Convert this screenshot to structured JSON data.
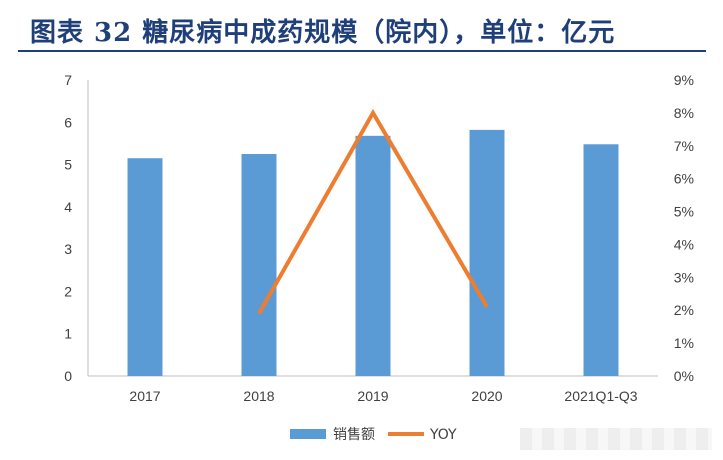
{
  "title": "图表 32   糖尿病中成药规模（院内），单位：亿元",
  "chart_data": {
    "type": "bar",
    "categories": [
      "2017",
      "2018",
      "2019",
      "2020",
      "2021Q1-Q3"
    ],
    "series": [
      {
        "name": "销售额",
        "type": "bar",
        "axis": "left",
        "color": "#5b9bd5",
        "values": [
          5.15,
          5.25,
          5.68,
          5.82,
          5.48
        ]
      },
      {
        "name": "YOY",
        "type": "line",
        "axis": "right",
        "color": "#ed7d31",
        "values": [
          null,
          0.019,
          0.08,
          0.021,
          null
        ]
      }
    ],
    "y_left": {
      "min": 0,
      "max": 7,
      "ticks": [
        "0",
        "1",
        "2",
        "3",
        "4",
        "5",
        "6",
        "7"
      ]
    },
    "y_right": {
      "min": 0,
      "max": 0.09,
      "ticks": [
        "0%",
        "1%",
        "2%",
        "3%",
        "4%",
        "5%",
        "6%",
        "7%",
        "8%",
        "9%"
      ]
    },
    "grid": false,
    "legend_position": "bottom"
  }
}
